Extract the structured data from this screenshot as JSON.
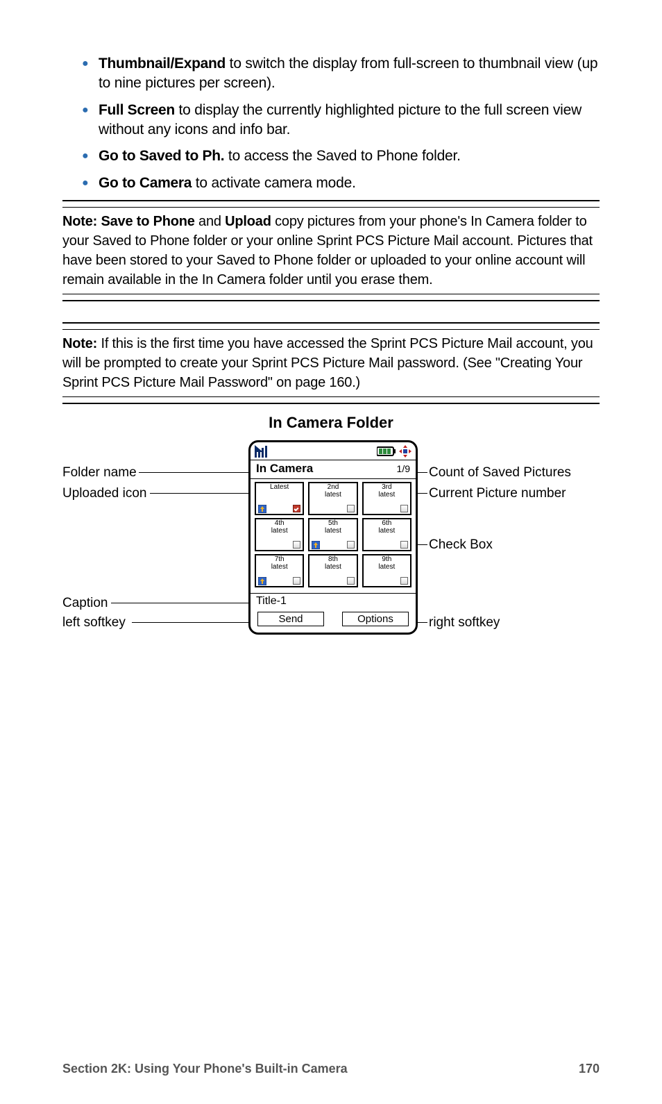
{
  "bullets": [
    {
      "lead": "Thumbnail/Expand",
      "rest": " to switch the display from full-screen to thumbnail view (up to nine pictures per screen)."
    },
    {
      "lead": "Full Screen",
      "rest": " to display the currently highlighted picture to the full screen view without any icons and info bar."
    },
    {
      "lead": "Go to Saved to Ph.",
      "rest": " to access the Saved to Phone folder."
    },
    {
      "lead": "Go to Camera",
      "rest": " to activate camera mode."
    }
  ],
  "note1": {
    "lead": "Note:",
    "strong1": "Save to Phone",
    "mid1": " and ",
    "strong2": "Upload",
    "rest": " copy pictures from your phone's In Camera folder to your Saved to Phone folder or your online Sprint PCS Picture Mail account. Pictures that have been stored to your Saved to Phone folder or uploaded to your online account will remain available in the In Camera folder until you erase them."
  },
  "note2": {
    "lead": "Note:",
    "rest": " If this is the first time you have accessed the Sprint PCS Picture Mail account, you will be prompted to create your Sprint PCS Picture Mail password. (See \"Creating Your Sprint PCS Picture Mail Password\" on page 160.)"
  },
  "diagram": {
    "title": "In Camera Folder",
    "folder_name": "In Camera",
    "count": "1/9",
    "caption": "Title-1",
    "left_softkey": "Send",
    "right_softkey": "Options",
    "thumbs": [
      [
        {
          "label": "Latest",
          "uploaded": true,
          "checked": true
        },
        {
          "label": "2nd\nlatest"
        },
        {
          "label": "3rd\nlatest"
        }
      ],
      [
        {
          "label": "4th\nlatest"
        },
        {
          "label": "5th\nlatest",
          "uploaded": true
        },
        {
          "label": "6th\nlatest"
        }
      ],
      [
        {
          "label": "7th\nlatest",
          "uploaded": true
        },
        {
          "label": "8th\nlatest"
        },
        {
          "label": "9th\nlatest"
        }
      ]
    ],
    "callouts": {
      "folder_name": "Folder name",
      "uploaded_icon": "Uploaded icon",
      "caption": "Caption",
      "left_softkey": "left softkey",
      "count_saved": "Count of Saved Pictures",
      "current_pic": "Current Picture number",
      "check_box": "Check Box",
      "right_softkey": "right softkey"
    },
    "colors": {
      "bullet": "#2b6cb0",
      "signal": "#0a2a66",
      "battery_fill": "#2e8b3d",
      "nav_arrow": "#c02020",
      "nav_center": "#2040a0",
      "check_fill": "#c0392b",
      "upload_bg": "#2e64c8",
      "upload_arrow": "#f0b020"
    }
  },
  "footer": {
    "section": "Section 2K: Using Your Phone's Built-in Camera",
    "page": "170"
  }
}
